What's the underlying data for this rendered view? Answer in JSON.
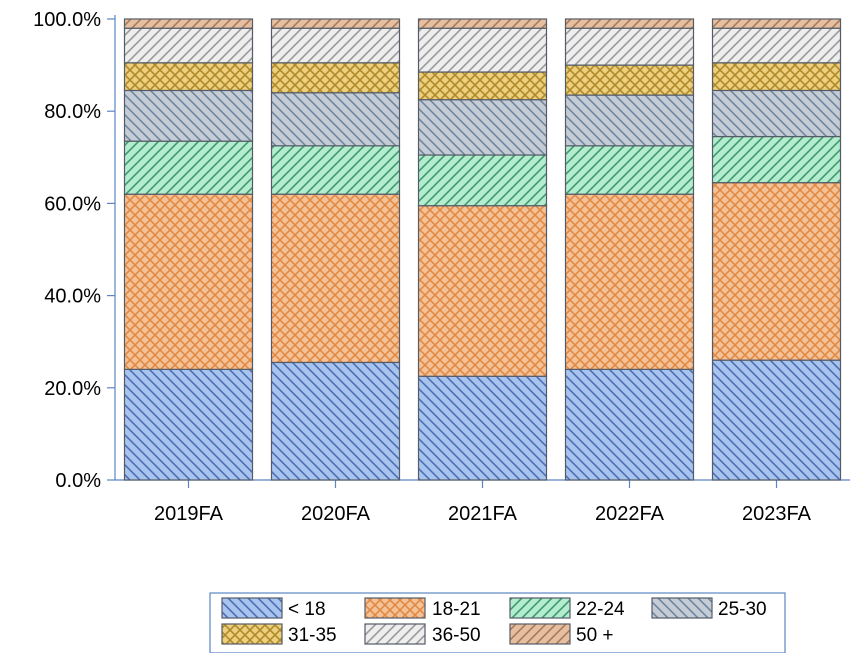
{
  "chart_data": {
    "type": "bar",
    "stacked": true,
    "title": "",
    "xlabel": "",
    "ylabel": "",
    "ylim": [
      0,
      100
    ],
    "yticks": [
      "0.0%",
      "20.0%",
      "40.0%",
      "60.0%",
      "80.0%",
      "100.0%"
    ],
    "categories": [
      "2019FA",
      "2020FA",
      "2021FA",
      "2022FA",
      "2023FA"
    ],
    "series": [
      {
        "name": "< 18",
        "color": "#a8c4ee",
        "stroke": "#4a6fb5",
        "pattern": "diag-right",
        "values": [
          24.0,
          25.5,
          22.5,
          24.0,
          26.0
        ]
      },
      {
        "name": "18-21",
        "color": "#f5c298",
        "stroke": "#e08a45",
        "pattern": "crosshatch",
        "values": [
          38.0,
          36.5,
          37.0,
          38.0,
          38.5
        ]
      },
      {
        "name": "22-24",
        "color": "#b4ecd0",
        "stroke": "#3f9a6e",
        "pattern": "diag-left",
        "values": [
          11.5,
          10.5,
          11.0,
          10.5,
          10.0
        ]
      },
      {
        "name": "25-30",
        "color": "#c5ccd6",
        "stroke": "#6f86a0",
        "pattern": "diag-right",
        "values": [
          11.0,
          11.5,
          12.0,
          11.0,
          10.0
        ]
      },
      {
        "name": "31-35",
        "color": "#ecd07e",
        "stroke": "#b08a2a",
        "pattern": "crosshatch",
        "values": [
          6.0,
          6.5,
          6.0,
          6.5,
          6.0
        ]
      },
      {
        "name": "36-50",
        "color": "#eeeeee",
        "stroke": "#9a9a9a",
        "pattern": "diag-left",
        "values": [
          7.5,
          7.5,
          9.5,
          8.0,
          7.5
        ]
      },
      {
        "name": "50 +",
        "color": "#e6bfa0",
        "stroke": "#a87b5c",
        "pattern": "diag-left",
        "values": [
          2.0,
          2.0,
          2.0,
          2.0,
          2.0
        ]
      }
    ],
    "grid": false,
    "legend_position": "bottom"
  }
}
